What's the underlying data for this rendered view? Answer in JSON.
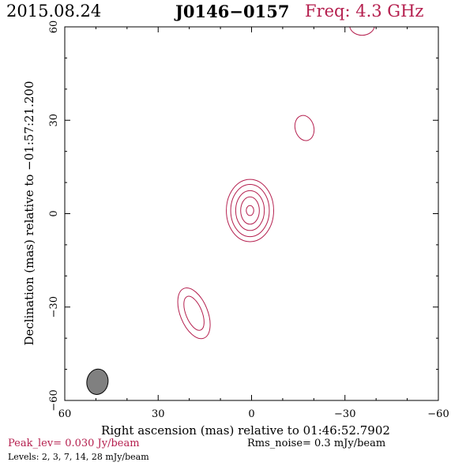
{
  "header": {
    "date": "2015.08.24",
    "source": "J0146−0157",
    "freq": "Freq: 4.3 GHz"
  },
  "footer": {
    "peak": "Peak_lev=  0.030 Jy/beam",
    "rms": "Rms_noise=   0.3 mJy/beam",
    "levels": "Levels:   2,    3,    7,   14,   28 mJy/beam"
  },
  "colors": {
    "contour": "#b5204f",
    "beam_fill": "#808080",
    "axis": "#000000"
  },
  "chart_data": {
    "type": "contour",
    "title": "J0146−0157",
    "xlabel": "Right ascension (mas) relative to 01:46:52.7902",
    "ylabel": "Declination (mas) relative to −01:57:21.200",
    "xlim": [
      60,
      -60
    ],
    "ylim": [
      -60,
      60
    ],
    "xticks": [
      60,
      30,
      0,
      -30,
      -60
    ],
    "yticks": [
      -60,
      -30,
      0,
      30,
      60
    ],
    "xtick_labels": [
      "60",
      "30",
      "0",
      "−30",
      "−60"
    ],
    "ytick_labels": [
      "−60",
      "−30",
      "0",
      "30",
      "60"
    ],
    "levels_mJy": [
      2,
      3,
      7,
      14,
      28
    ],
    "peak_Jy_per_beam": 0.03,
    "rms_mJy_per_beam": 0.3,
    "components": [
      {
        "x": 0.5,
        "y": 1.0,
        "contours": [
          {
            "level": 2,
            "rx": 7.6,
            "ry": 10.0
          },
          {
            "level": 3,
            "rx": 6.2,
            "ry": 8.4
          },
          {
            "level": 7,
            "rx": 4.6,
            "ry": 6.4
          },
          {
            "level": 14,
            "rx": 3.0,
            "ry": 4.4
          },
          {
            "level": 28,
            "rx": 1.2,
            "ry": 1.6
          }
        ]
      },
      {
        "x": 18.5,
        "y": -32.0,
        "angle": -22,
        "contours": [
          {
            "level": 2,
            "rx": 4.4,
            "ry": 8.6
          },
          {
            "level": 3,
            "rx": 2.6,
            "ry": 5.8
          }
        ]
      },
      {
        "x": -17.0,
        "y": 27.5,
        "angle": -15,
        "contours": [
          {
            "level": 2,
            "rx": 3.0,
            "ry": 4.1
          }
        ]
      },
      {
        "x": -35.5,
        "y": 60.5,
        "contours": [
          {
            "level": 2,
            "rx": 4.0,
            "ry": 3.2
          }
        ]
      }
    ],
    "beam": {
      "x": 49.5,
      "y": -54.0,
      "rx": 3.4,
      "ry": 4.1,
      "angle": 10
    }
  }
}
